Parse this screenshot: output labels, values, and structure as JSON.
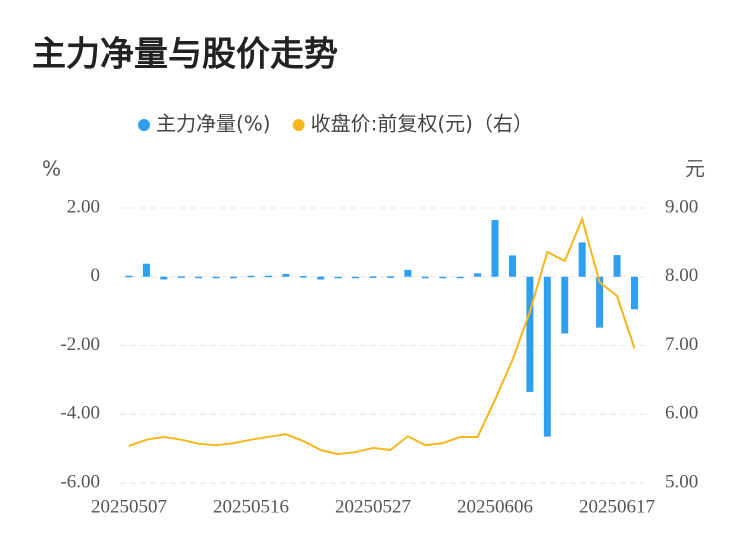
{
  "chart_data": {
    "type": "bar-line",
    "title": "主力净量与股价走势",
    "y_label": "%",
    "y2_label": "元",
    "categories": [
      "20250507",
      null,
      null,
      null,
      null,
      null,
      null,
      "20250516",
      null,
      null,
      null,
      null,
      null,
      null,
      "20250527",
      null,
      null,
      null,
      null,
      null,
      null,
      "20250606",
      null,
      null,
      null,
      null,
      null,
      null,
      "20250617",
      null
    ],
    "series": [
      {
        "name": "主力净量(%)",
        "type": "bar",
        "color": "#2f9ff0",
        "values": [
          0.03,
          0.38,
          -0.08,
          0.01,
          -0.02,
          -0.02,
          -0.01,
          0.03,
          0.03,
          0.08,
          0.02,
          -0.08,
          -0.02,
          -0.02,
          0.01,
          0.01,
          0.2,
          -0.02,
          -0.02,
          -0.02,
          0.1,
          1.65,
          0.62,
          -3.35,
          -4.65,
          -1.65,
          1.0,
          -1.48,
          0.63,
          -0.95
        ]
      },
      {
        "name": "收盘价:前复权(元)（右）",
        "type": "line",
        "axis": "y2",
        "color": "#f5b81c",
        "values": [
          5.54,
          5.63,
          5.67,
          5.63,
          5.57,
          5.55,
          5.58,
          5.63,
          5.67,
          5.71,
          5.61,
          5.48,
          5.42,
          5.45,
          5.51,
          5.48,
          5.68,
          5.55,
          5.58,
          5.67,
          5.67,
          6.21,
          6.79,
          7.49,
          8.36,
          8.23,
          8.84,
          7.92,
          7.72,
          6.96
        ]
      }
    ],
    "ylim": [
      -6,
      2
    ],
    "yticks": [
      {
        "value": 2,
        "label": "2.00"
      },
      0,
      {
        "value": -2,
        "label": "-2.00"
      },
      {
        "value": -4,
        "label": "-4.00"
      },
      {
        "value": -6,
        "label": "-6.00"
      }
    ],
    "y2lim": [
      5,
      9
    ],
    "y2ticks": [
      {
        "value": 9,
        "label": "9.00"
      },
      {
        "value": 8,
        "label": "8.00"
      },
      {
        "value": 7,
        "label": "7.00"
      },
      {
        "value": 6,
        "label": "6.00"
      },
      {
        "value": 5,
        "label": "5.00"
      }
    ],
    "grid": true
  }
}
